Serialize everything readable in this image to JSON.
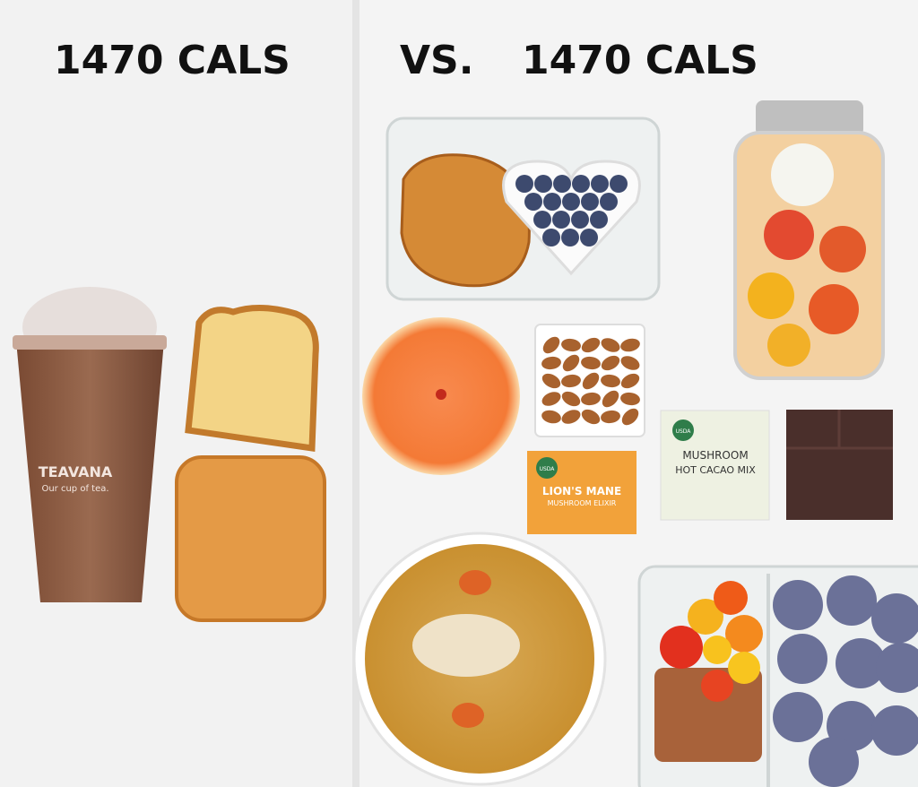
{
  "left": {
    "heading": "1470 CALS",
    "cup_brand": "TEAVANA",
    "cup_tagline": "Our cup of tea."
  },
  "right": {
    "vs": "VS.",
    "heading": "1470 CALS",
    "packet_1": {
      "badge": "USDA",
      "title": "LION'S MANE",
      "subtitle": "MUSHROOM ELIXIR"
    },
    "packet_2": {
      "badge": "USDA",
      "title": "MUSHROOM",
      "subtitle": "HOT CACAO MIX"
    }
  }
}
